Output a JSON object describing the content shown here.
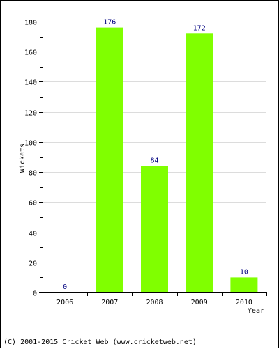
{
  "chart_data": {
    "type": "bar",
    "categories": [
      "2006",
      "2007",
      "2008",
      "2009",
      "2010"
    ],
    "values": [
      0,
      176,
      84,
      172,
      10
    ],
    "data_labels": [
      "0",
      "176",
      "84",
      "172",
      "10"
    ],
    "xlabel": "Year",
    "ylabel": "Wickets",
    "ylim": [
      0,
      180
    ],
    "yticks": [
      0,
      20,
      40,
      60,
      80,
      100,
      120,
      140,
      160,
      180
    ],
    "grid": true,
    "bar_color": "#80ff00",
    "label_color": "#000080"
  },
  "footer": {
    "copyright": "(C) 2001-2015 Cricket Web (www.cricketweb.net)"
  }
}
